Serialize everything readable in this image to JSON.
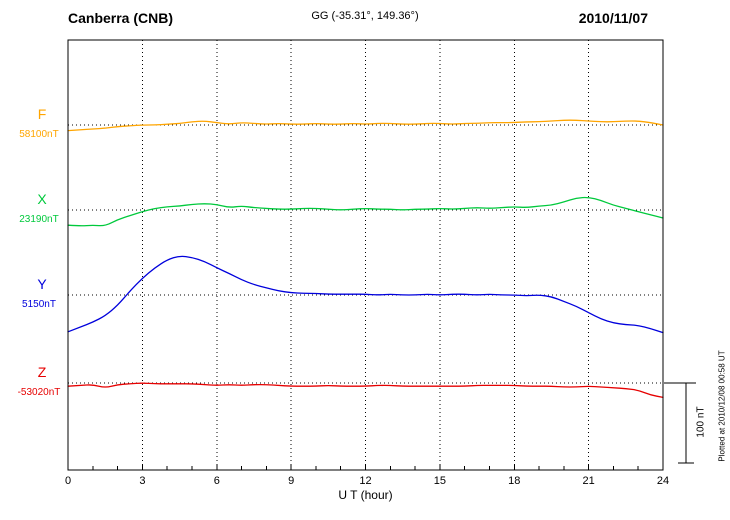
{
  "header": {
    "station": "Canberra (CNB)",
    "coordinates": "GG (-35.31°, 149.36°)",
    "date": "2010/11/07"
  },
  "axis": {
    "x_title": "U T (hour)",
    "x_tick_labels": [
      "0",
      "3",
      "6",
      "9",
      "12",
      "15",
      "18",
      "21",
      "24"
    ]
  },
  "scale_bar": {
    "label": "100 nT",
    "length_nT": 100
  },
  "footer": {
    "plotted_at": "Plotted at 2010/12/08 00:58 UT"
  },
  "chart_data": {
    "type": "line",
    "title": "Canberra (CNB) magnetogram 2010/11/07",
    "xlabel": "U T (hour)",
    "x_range": [
      0,
      24
    ],
    "x_ticks": [
      0,
      3,
      6,
      9,
      12,
      15,
      18,
      21,
      24
    ],
    "grid": "dotted vertical lines every 3 hours; dotted horizontal baseline per component",
    "x_start": 0,
    "x_step": 0.5,
    "scale_bar_nT": 100,
    "series": [
      {
        "name": "F",
        "baseline_label": "58100nT",
        "baseline_nT": 58100,
        "color": "#FFA500",
        "offsets_nT": [
          -7,
          -6,
          -5,
          -4,
          -2,
          -1,
          0,
          0,
          1,
          2,
          4,
          5,
          3,
          1,
          3,
          2,
          1,
          2,
          1,
          1,
          2,
          1,
          1,
          2,
          1,
          2,
          2,
          1,
          1,
          2,
          2,
          1,
          2,
          2,
          3,
          3,
          3,
          4,
          4,
          5,
          6,
          6,
          5,
          4,
          4,
          5,
          5,
          3,
          0
        ]
      },
      {
        "name": "X",
        "baseline_label": "23190nT",
        "baseline_nT": 23190,
        "color": "#00C93C",
        "offsets_nT": [
          -19,
          -20,
          -19,
          -20,
          -12,
          -7,
          -2,
          2,
          4,
          5,
          7,
          8,
          7,
          3,
          5,
          3,
          2,
          1,
          1,
          2,
          2,
          1,
          0,
          1,
          2,
          1,
          1,
          0,
          1,
          1,
          2,
          1,
          2,
          3,
          2,
          3,
          4,
          3,
          5,
          6,
          10,
          15,
          16,
          12,
          6,
          2,
          -2,
          -6,
          -10
        ]
      },
      {
        "name": "Y",
        "baseline_label": "5150nT",
        "baseline_nT": 5150,
        "color": "#0000DC",
        "offsets_nT": [
          -46,
          -40,
          -34,
          -26,
          -13,
          5,
          21,
          34,
          44,
          49,
          47,
          42,
          34,
          27,
          19,
          13,
          9,
          5,
          3,
          2,
          2,
          1,
          1,
          1,
          1,
          0,
          1,
          0,
          0,
          1,
          0,
          1,
          1,
          0,
          1,
          0,
          0,
          -1,
          0,
          -2,
          -8,
          -14,
          -22,
          -30,
          -35,
          -37,
          -38,
          -42,
          -47
        ]
      },
      {
        "name": "Z",
        "baseline_label": "-53020nT",
        "baseline_nT": -53020,
        "color": "#E60000",
        "offsets_nT": [
          -4,
          -3,
          -2,
          -6,
          -2,
          -1,
          0,
          -1,
          -1,
          -1,
          -1,
          -2,
          -3,
          -2,
          -3,
          -2,
          -2,
          -3,
          -4,
          -4,
          -4,
          -3,
          -4,
          -4,
          -4,
          -3,
          -3,
          -4,
          -4,
          -4,
          -4,
          -4,
          -4,
          -3,
          -3,
          -3,
          -3,
          -4,
          -4,
          -4,
          -5,
          -5,
          -4,
          -5,
          -6,
          -7,
          -9,
          -15,
          -18
        ]
      }
    ]
  }
}
